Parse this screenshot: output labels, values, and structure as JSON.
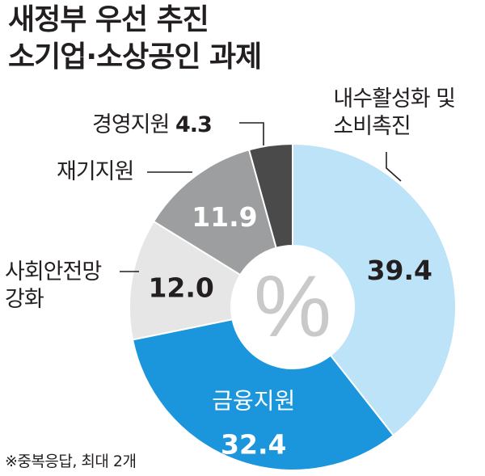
{
  "title_line1": "새정부 우선 추진",
  "title_line2": "소기업·소상공인 과제",
  "center_symbol": "%",
  "footnote": "※중복응답, 최대 2개",
  "colors": {
    "domestic": "#bde3f9",
    "finance": "#1b96dd",
    "safety": "#e6e6e6",
    "restart": "#9d9e9f",
    "management": "#4a4a4b",
    "text": "#231f20"
  },
  "chart_data": {
    "type": "pie",
    "title": "새정부 우선 추진 소기업·소상공인 과제",
    "unit": "%",
    "slices": [
      {
        "label_lines": [
          "내수활성화 및",
          "소비촉진"
        ],
        "value": 39.4,
        "value_text": "39.4"
      },
      {
        "label_lines": [
          "금융지원"
        ],
        "value": 32.4,
        "value_text": "32.4"
      },
      {
        "label_lines": [
          "사회안전망",
          "강화"
        ],
        "value": 12.0,
        "value_text": "12.0"
      },
      {
        "label_lines": [
          "재기지원"
        ],
        "value": 11.9,
        "value_text": "11.9"
      },
      {
        "label_lines": [
          "경영지원"
        ],
        "value": 4.3,
        "value_text": "4.3"
      }
    ]
  }
}
